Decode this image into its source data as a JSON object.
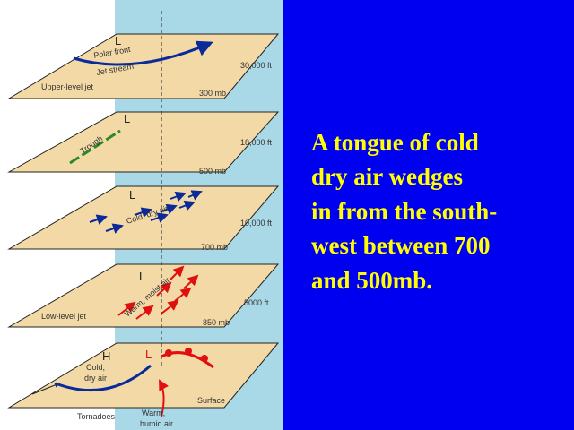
{
  "diagram": {
    "levels": [
      {
        "low": "L",
        "front": "Polar front",
        "stream": "Jet stream",
        "altitude": "30,000 ft",
        "jet": "Upper-level jet",
        "pressure": "300 mb"
      },
      {
        "low": "L",
        "feature": "Trough",
        "altitude": "18,000 ft",
        "pressure": "500 mb"
      },
      {
        "low": "L",
        "air": "Cold, dry air",
        "altitude": "10,000 ft",
        "pressure": "700 mb"
      },
      {
        "low": "L",
        "air": "Warm, moist air",
        "altitude": "5000 ft",
        "jet": "Low-level jet",
        "pressure": "850 mb"
      }
    ],
    "surface": {
      "high": "H",
      "low": "L",
      "cold_air": [
        "Cold,",
        "dry air"
      ],
      "name": "Surface",
      "tornadoes": "Tornadoes",
      "warm_air": [
        "Warm,",
        "humid air"
      ]
    }
  },
  "caption": {
    "lines": [
      "A tongue of cold",
      "dry air wedges",
      "in from the south-",
      "west between 700",
      "and 500mb."
    ]
  }
}
